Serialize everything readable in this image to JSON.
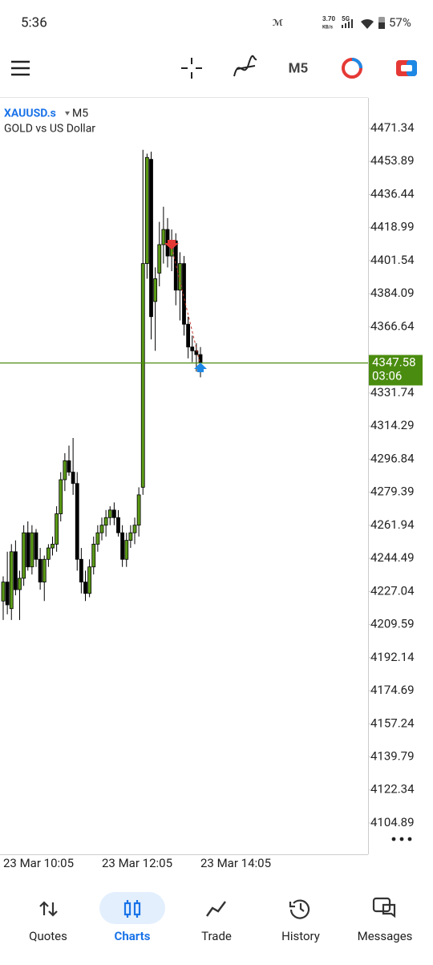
{
  "status_bar": {
    "time": "5:36",
    "speed": "3.70",
    "speed_unit": "KB/s",
    "network": "5G",
    "battery": "57%"
  },
  "toolbar": {
    "timeframe": "M5"
  },
  "chart_header": {
    "symbol": "XAUUSD.s",
    "timeframe": "M5",
    "description": "GOLD vs US Dollar"
  },
  "chart_data": {
    "type": "candlestick",
    "categories": [
      "23 Mar 10:05",
      null,
      null,
      null,
      null,
      null,
      null,
      null,
      null,
      null,
      null,
      null,
      null,
      null,
      null,
      null,
      null,
      null,
      null,
      null,
      null,
      null,
      null,
      null,
      "23 Mar 12:05",
      null,
      null,
      null,
      null,
      null,
      null,
      null,
      null,
      null,
      null,
      null,
      null,
      null,
      null,
      null,
      null,
      null,
      null,
      null,
      null,
      null,
      null,
      null,
      "23 Mar 14:05"
    ],
    "open": [
      4222,
      4232,
      4218,
      4248,
      4228,
      4234,
      4258,
      4240,
      4258,
      4244,
      4232,
      4244,
      4250,
      4252,
      4268,
      4286,
      4296,
      4290,
      4284,
      4244,
      4232,
      4226,
      4240,
      4252,
      4258,
      4262,
      4266,
      4270,
      4266,
      4258,
      4244,
      4254,
      4258,
      4262,
      4282,
      4400,
      4455,
      4380,
      4395,
      4410,
      4418,
      4404,
      4412,
      4386,
      4400,
      4368,
      4356,
      4354,
      4352
    ],
    "high": [
      4235,
      4248,
      4252,
      4254,
      4238,
      4262,
      4264,
      4262,
      4260,
      4250,
      4246,
      4252,
      4256,
      4272,
      4290,
      4300,
      4304,
      4308,
      4290,
      4250,
      4238,
      4244,
      4256,
      4262,
      4266,
      4270,
      4272,
      4274,
      4270,
      4262,
      4258,
      4262,
      4266,
      4282,
      4460,
      4458,
      4459,
      4398,
      4422,
      4430,
      4424,
      4418,
      4416,
      4406,
      4404,
      4372,
      4362,
      4358,
      4356
    ],
    "low": [
      4212,
      4215,
      4212,
      4225,
      4212,
      4230,
      4238,
      4236,
      4240,
      4228,
      4222,
      4240,
      4246,
      4248,
      4264,
      4280,
      4288,
      4278,
      4238,
      4226,
      4222,
      4224,
      4236,
      4248,
      4254,
      4256,
      4262,
      4262,
      4256,
      4240,
      4240,
      4250,
      4252,
      4256,
      4278,
      4392,
      4360,
      4354,
      4388,
      4400,
      4398,
      4396,
      4378,
      4370,
      4362,
      4350,
      4348,
      4343,
      4340
    ],
    "close": [
      4232,
      4220,
      4248,
      4228,
      4234,
      4258,
      4240,
      4258,
      4244,
      4232,
      4244,
      4250,
      4252,
      4268,
      4286,
      4296,
      4290,
      4284,
      4244,
      4232,
      4226,
      4240,
      4252,
      4258,
      4262,
      4266,
      4270,
      4266,
      4258,
      4244,
      4254,
      4258,
      4262,
      4278,
      4400,
      4456,
      4372,
      4392,
      4410,
      4418,
      4404,
      4412,
      4386,
      4400,
      4368,
      4356,
      4354,
      4352,
      4347.58
    ],
    "up_color": "#5b9a17",
    "down_color": "#000000",
    "ylim": [
      4088.39,
      4487.42
    ],
    "yticks": [
      4471.34,
      4453.89,
      4436.44,
      4418.99,
      4401.54,
      4384.09,
      4366.64,
      4331.74,
      4314.29,
      4296.84,
      4279.39,
      4261.94,
      4244.49,
      4227.04,
      4209.59,
      4192.14,
      4174.69,
      4157.24,
      4139.79,
      4122.34,
      4104.89
    ],
    "current_price": 4347.58,
    "countdown": "03:06",
    "price_line_color": "#4a8c0f"
  },
  "nav": {
    "items": [
      "Quotes",
      "Charts",
      "Trade",
      "History",
      "Messages"
    ],
    "active": 1
  }
}
